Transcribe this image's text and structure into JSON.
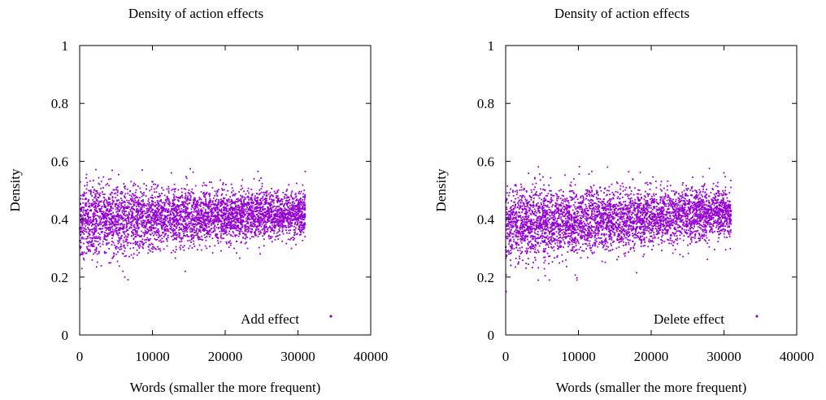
{
  "chart_data": [
    {
      "type": "scatter",
      "title": "Density of action effects",
      "xlabel": "Words (smaller the more frequent)",
      "ylabel": "Density",
      "xlim": [
        0,
        40000
      ],
      "ylim": [
        0,
        1
      ],
      "x_ticks": [
        "0",
        "10000",
        "20000",
        "30000",
        "40000"
      ],
      "y_ticks": [
        "0",
        "0.2",
        "0.4",
        "0.6",
        "0.8",
        "1"
      ],
      "legend": "bottom-right",
      "grid": false,
      "series": [
        {
          "name": "Add effect",
          "color": "#9400d3",
          "x_range": [
            0,
            31000
          ],
          "band_start": [
            0.265,
            0.395,
            0.525
          ],
          "band_end": [
            0.345,
            0.42,
            0.5
          ],
          "outliers": [
            [
              60,
              0.16
            ],
            [
              8600,
              0.57
            ],
            [
              12600,
              0.56
            ],
            [
              24500,
              0.565
            ],
            [
              31000,
              0.565
            ],
            [
              6200,
              0.2
            ],
            [
              14500,
              0.22
            ],
            [
              3000,
              0.53
            ]
          ]
        }
      ]
    },
    {
      "type": "scatter",
      "title": "Density of action effects",
      "xlabel": "Words (smaller the more frequent)",
      "ylabel": "Density",
      "xlim": [
        0,
        40000
      ],
      "ylim": [
        0,
        1
      ],
      "x_ticks": [
        "0",
        "10000",
        "20000",
        "30000",
        "40000"
      ],
      "y_ticks": [
        "0",
        "0.2",
        "0.4",
        "0.6",
        "0.8",
        "1"
      ],
      "legend": "bottom-right",
      "grid": false,
      "series": [
        {
          "name": "Delete effect",
          "color": "#9400d3",
          "x_range": [
            0,
            31000
          ],
          "band_start": [
            0.25,
            0.38,
            0.52
          ],
          "band_end": [
            0.33,
            0.42,
            0.5
          ],
          "outliers": [
            [
              80,
              0.15
            ],
            [
              14000,
              0.58
            ],
            [
              28000,
              0.575
            ],
            [
              30000,
              0.56
            ],
            [
              9800,
              0.19
            ],
            [
              6000,
              0.19
            ],
            [
              18000,
              0.215
            ],
            [
              4000,
              0.54
            ]
          ]
        }
      ]
    }
  ]
}
